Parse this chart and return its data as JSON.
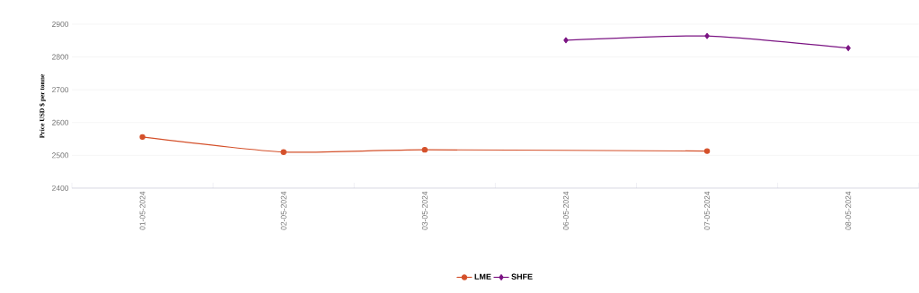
{
  "chart_data": {
    "type": "line",
    "ylabel": "Price USD $ per tonne",
    "categories": [
      "01-05-2024",
      "02-05-2024",
      "03-05-2024",
      "06-05-2024",
      "07-05-2024",
      "08-05-2024"
    ],
    "series": [
      {
        "name": "LME",
        "color": "#d4502a",
        "marker": "circle",
        "values": [
          2556,
          2510,
          2517,
          null,
          2513,
          null
        ]
      },
      {
        "name": "SHFE",
        "color": "#7b1483",
        "marker": "diamond",
        "values": [
          null,
          null,
          null,
          2851,
          2864,
          2827
        ]
      }
    ],
    "ylim": [
      2400,
      2900
    ],
    "yticks": [
      2400,
      2500,
      2600,
      2700,
      2800,
      2900
    ],
    "grid": "y",
    "legend": "bottom"
  }
}
